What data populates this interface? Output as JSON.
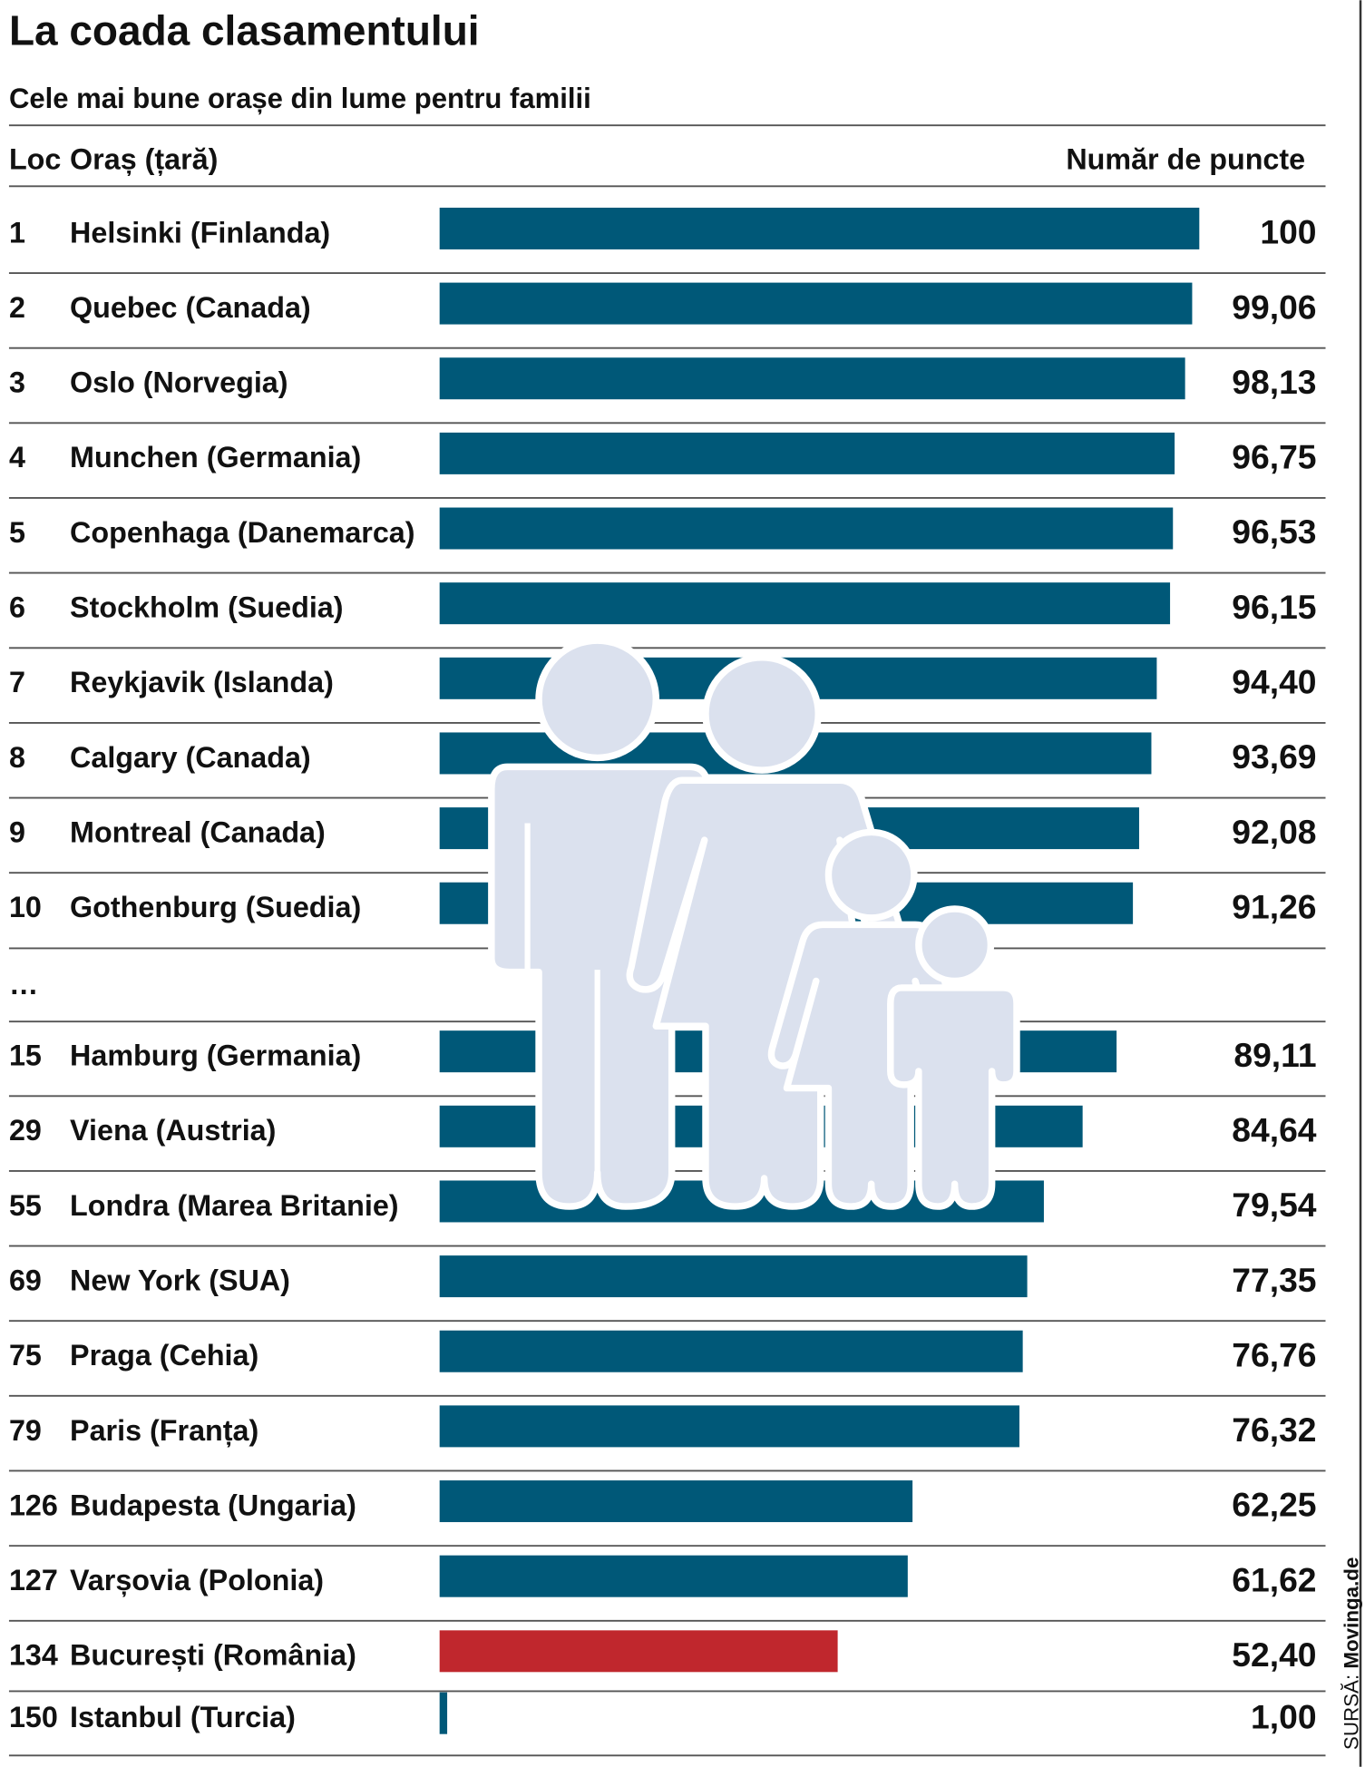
{
  "chart_data": {
    "type": "bar",
    "title": "La coada clasamentului",
    "subtitle": "Cele mai bune orașe din lume pentru familii",
    "column_headers": [
      "Loc",
      "Oraș (țară)",
      "Număr de puncte"
    ],
    "ranks": [
      "1",
      "2",
      "3",
      "4",
      "5",
      "6",
      "7",
      "8",
      "9",
      "10",
      "…",
      "15",
      "29",
      "55",
      "69",
      "75",
      "79",
      "126",
      "127",
      "134",
      "150"
    ],
    "categories": [
      "Helsinki (Finlanda)",
      "Quebec (Canada)",
      "Oslo (Norvegia)",
      "Munchen (Germania)",
      "Copenhaga (Danemarca)",
      "Stockholm (Suedia)",
      "Reykjavik (Islanda)",
      "Calgary (Canada)",
      "Montreal (Canada)",
      "Gothenburg (Suedia)",
      null,
      "Hamburg (Germania)",
      "Viena (Austria)",
      "Londra (Marea Britanie)",
      "New York (SUA)",
      "Praga (Cehia)",
      "Paris (Franța)",
      "Budapesta (Ungaria)",
      "Varșovia (Polonia)",
      "București (România)",
      "Istanbul (Turcia)"
    ],
    "values": [
      100,
      99.06,
      98.13,
      96.75,
      96.53,
      96.15,
      94.4,
      93.69,
      92.08,
      91.26,
      null,
      89.11,
      84.64,
      79.54,
      77.35,
      76.76,
      76.32,
      62.25,
      61.62,
      52.4,
      1.0
    ],
    "value_labels": [
      "100",
      "99,06",
      "98,13",
      "96,75",
      "96,53",
      "96,15",
      "94,40",
      "93,69",
      "92,08",
      "91,26",
      null,
      "89,11",
      "84,64",
      "79,54",
      "77,35",
      "76,76",
      "76,32",
      "62,25",
      "61,62",
      "52,40",
      "1,00"
    ],
    "bar_colors": [
      "#005878",
      "#005878",
      "#005878",
      "#005878",
      "#005878",
      "#005878",
      "#005878",
      "#005878",
      "#005878",
      "#005878",
      null,
      "#005878",
      "#005878",
      "#005878",
      "#005878",
      "#005878",
      "#005878",
      "#005878",
      "#005878",
      "#c0272d",
      "#005878"
    ],
    "xlim": [
      0,
      100
    ],
    "source_label": "SURSĂ:",
    "source": "Movinga.de"
  }
}
